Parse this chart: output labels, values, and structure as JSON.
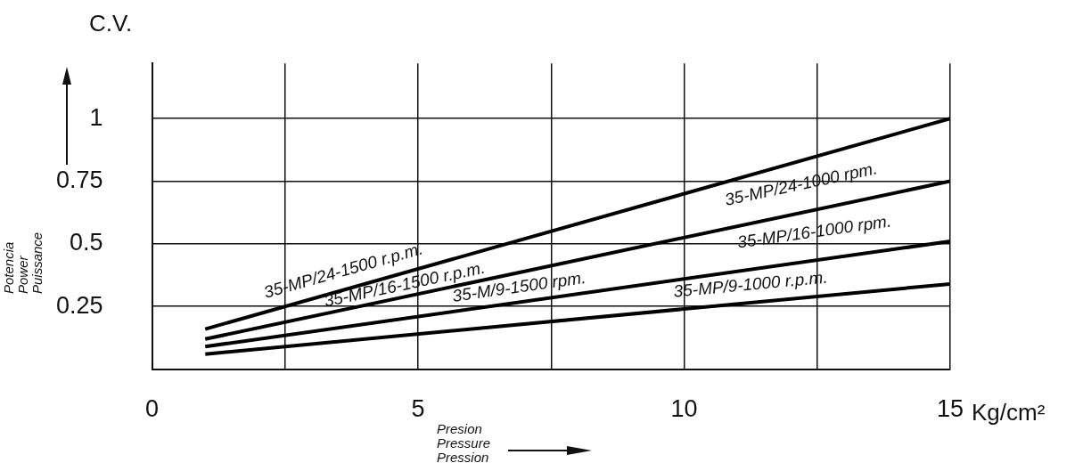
{
  "chart_data": {
    "type": "line",
    "xlabel": "Presion\nPressure\nPression",
    "ylabel": "Potencia\nPower\nPuissance",
    "x": [
      1,
      15
    ],
    "series": [
      {
        "color": "#000000",
        "values": [
          0.16,
          1.0
        ]
      },
      {
        "color": "#000000",
        "values": [
          0.12,
          0.75
        ]
      },
      {
        "color": "#000000",
        "values": [
          0.09,
          0.51
        ]
      },
      {
        "color": "#000000",
        "values": [
          0.06,
          0.34
        ]
      }
    ],
    "xlim": [
      0,
      15
    ],
    "xticks": [
      0,
      {
        "value": 2.5,
        "label": null
      },
      5,
      {
        "value": 7.5,
        "label": null
      },
      10,
      {
        "value": 12.5,
        "label": null
      },
      15
    ],
    "ylim": [
      0,
      1.22
    ],
    "yticks": [
      {
        "value": 0,
        "label": null
      },
      0.25,
      0.5,
      0.75,
      1
    ],
    "grid": true,
    "legend": false,
    "marker": "none",
    "line_style": "solid",
    "annotations": [
      "C.V.",
      "Kg/cm²",
      "35-MP/24-1500 r.p.m.",
      "35-MP/16-1500 r.p.m.",
      "35-M/9-1500 rpm.",
      "35-MP/24-1000 rpm.",
      "35-MP/16-1000 rpm.",
      "35-MP/9-1000 r.p.m."
    ]
  }
}
